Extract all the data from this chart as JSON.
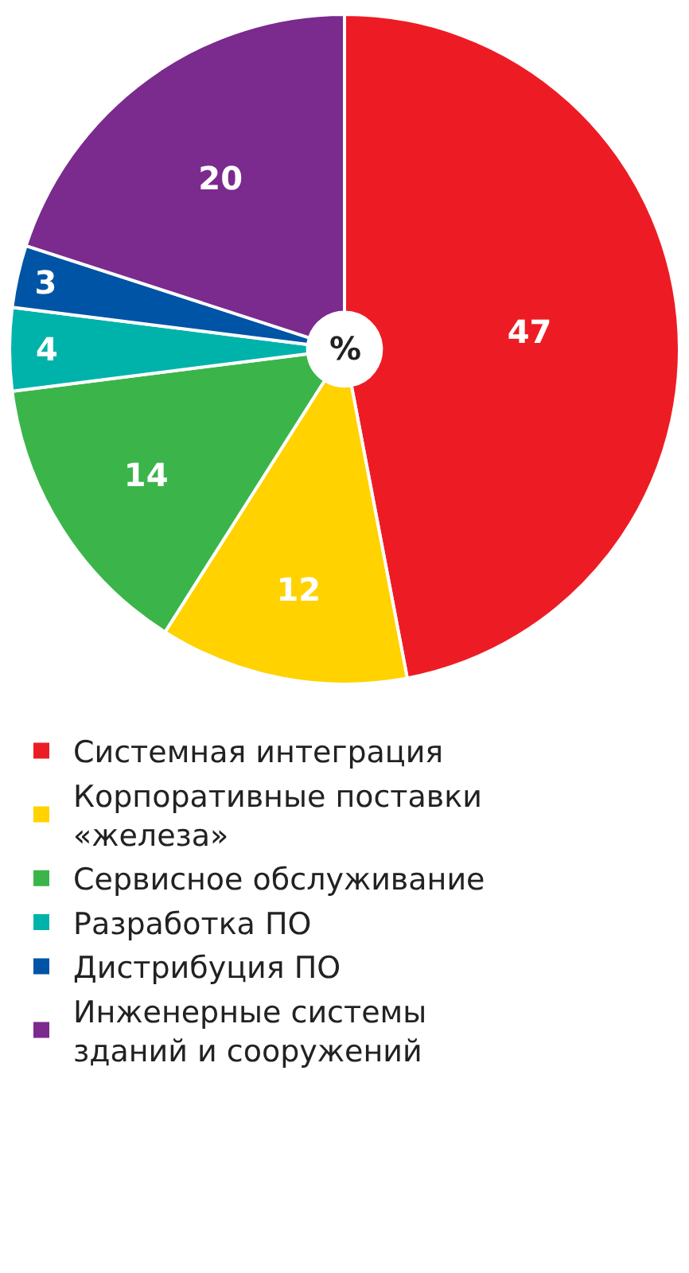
{
  "chart_data": {
    "type": "pie",
    "categories": [
      "Системная интеграция",
      "Корпоративные поставки «железа»",
      "Сервисное обслуживание",
      "Разработка ПО",
      "Дистрибуция ПО",
      "Инженерные системы зданий и сооружений"
    ],
    "values": [
      47,
      12,
      14,
      4,
      3,
      20
    ],
    "colors": [
      "#ed1c24",
      "#ffd200",
      "#3bb54a",
      "#00b3aa",
      "#0054a6",
      "#7b2a8e"
    ],
    "annotations": [
      "%"
    ],
    "data_labels": true,
    "legend": "bottom"
  }
}
